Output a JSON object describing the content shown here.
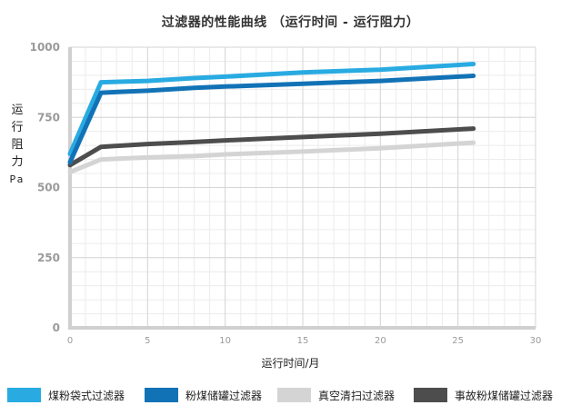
{
  "chart_data": {
    "type": "line",
    "title": "过滤器的性能曲线 （运行时间 - 运行阻力）",
    "xlabel": "运行时间/月",
    "ylabel": [
      "运",
      "行",
      "阻",
      "力"
    ],
    "yunit": "Pa",
    "xlim": [
      0,
      30
    ],
    "ylim": [
      0,
      1000
    ],
    "xticks": [
      0,
      5,
      10,
      15,
      20,
      25,
      30
    ],
    "yticks": [
      0,
      250,
      500,
      750,
      1000
    ],
    "grid": true,
    "legend_position": "bottom",
    "series": [
      {
        "name": "煤粉袋式过滤器",
        "color": "#29abe2",
        "x": [
          0,
          2,
          5,
          8,
          10,
          15,
          20,
          26
        ],
        "y": [
          620,
          875,
          880,
          890,
          895,
          910,
          920,
          940
        ]
      },
      {
        "name": "粉煤储罐过滤器",
        "color": "#1272b6",
        "x": [
          0,
          2,
          5,
          8,
          10,
          15,
          20,
          26
        ],
        "y": [
          590,
          838,
          845,
          855,
          860,
          870,
          880,
          898
        ]
      },
      {
        "name": "真空清扫过滤器",
        "color": "#d4d4d4",
        "x": [
          0,
          2,
          5,
          8,
          10,
          15,
          20,
          26
        ],
        "y": [
          555,
          600,
          607,
          612,
          618,
          628,
          640,
          660
        ]
      },
      {
        "name": "事故粉煤储罐过滤器",
        "color": "#4d4d4d",
        "x": [
          0,
          2,
          5,
          8,
          10,
          15,
          20,
          26
        ],
        "y": [
          580,
          645,
          655,
          662,
          668,
          680,
          692,
          710
        ]
      }
    ]
  }
}
